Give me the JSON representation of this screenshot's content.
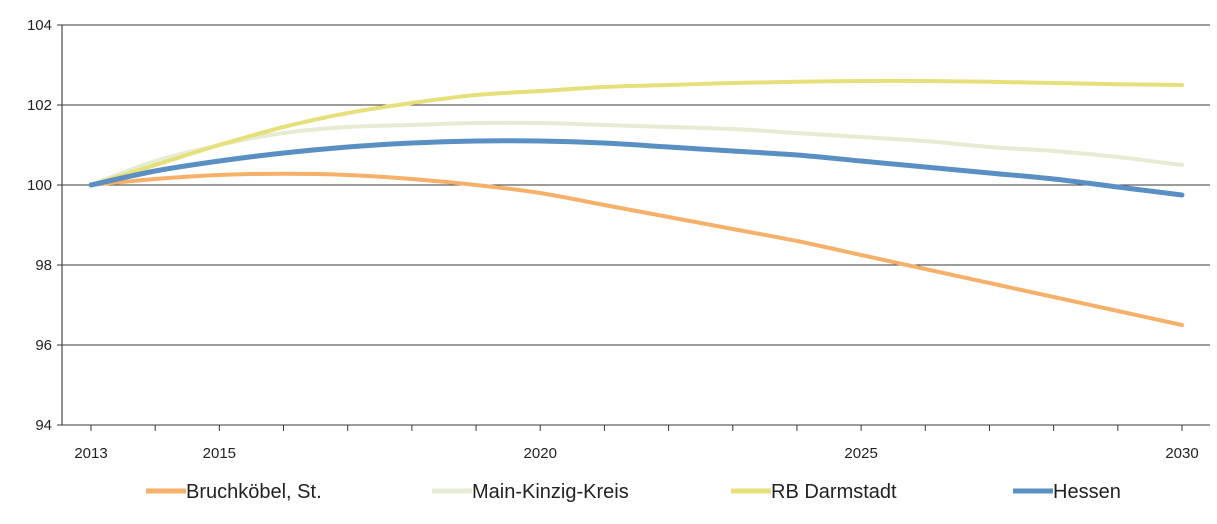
{
  "chart_data": {
    "type": "line",
    "title": "",
    "xlabel": "",
    "ylabel": "",
    "xlim": [
      2013,
      2030
    ],
    "ylim": [
      94,
      104
    ],
    "y_ticks": [
      94,
      96,
      98,
      100,
      102,
      104
    ],
    "x_ticks": [
      2013,
      2015,
      2020,
      2025,
      2030
    ],
    "grid": "horizontal",
    "legend_position": "bottom",
    "x": [
      2013,
      2014,
      2015,
      2016,
      2017,
      2018,
      2019,
      2020,
      2021,
      2022,
      2023,
      2024,
      2025,
      2026,
      2027,
      2028,
      2029,
      2030
    ],
    "series": [
      {
        "name": "Bruchköbel, St.",
        "color": "#f5b06a",
        "values": [
          100.0,
          100.15,
          100.25,
          100.28,
          100.25,
          100.15,
          100.0,
          99.8,
          99.5,
          99.2,
          98.9,
          98.6,
          98.25,
          97.9,
          97.55,
          97.2,
          96.85,
          96.5
        ]
      },
      {
        "name": "Main-Kinzig-Kreis",
        "color": "#e6ecd2",
        "values": [
          100.0,
          100.6,
          101.0,
          101.3,
          101.45,
          101.5,
          101.55,
          101.55,
          101.5,
          101.45,
          101.4,
          101.3,
          101.2,
          101.1,
          100.95,
          100.85,
          100.7,
          100.5
        ]
      },
      {
        "name": "RB Darmstadt",
        "color": "#e6e07a",
        "values": [
          100.0,
          100.5,
          101.0,
          101.45,
          101.8,
          102.05,
          102.25,
          102.35,
          102.45,
          102.5,
          102.55,
          102.58,
          102.6,
          102.6,
          102.58,
          102.55,
          102.52,
          102.5
        ]
      },
      {
        "name": "Hessen",
        "color": "#5a8fc4",
        "values": [
          100.0,
          100.35,
          100.6,
          100.8,
          100.95,
          101.05,
          101.1,
          101.1,
          101.05,
          100.95,
          100.85,
          100.75,
          100.6,
          100.45,
          100.3,
          100.15,
          99.95,
          99.75
        ]
      }
    ]
  }
}
